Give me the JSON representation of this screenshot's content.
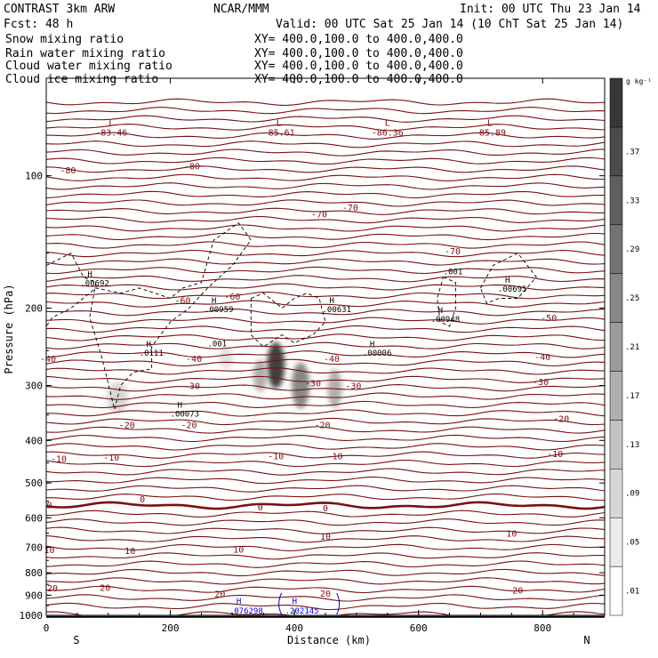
{
  "header": {
    "model": "CONTRAST  3km ARW",
    "center": "NCAR/MMM",
    "init": "Init: 00 UTC Thu 23 Jan 14",
    "fcst": "Fcst:   48 h",
    "valid": "Valid: 00 UTC Sat 25 Jan 14 (10 ChT Sat 25 Jan 14)"
  },
  "fields": [
    {
      "name": "Snow mixing ratio",
      "xy": "",
      "color": "#000000"
    },
    {
      "name": "Rain water mixing ratio",
      "xy": "XY= 400.0,100.0 to 400.0,400.0",
      "color": "#cc0000"
    },
    {
      "name": "Cloud water mixing ratio",
      "xy": "XY= 400.0,100.0 to 400.0,400.0",
      "color": "#0000cc"
    },
    {
      "name": "Cloud ice mixing ratio",
      "xy": "XY= 400.0,100.0 to 400.0,400.0",
      "color": "#000000"
    }
  ],
  "snow_xy": "XY= 400.0,100.0 to 400.0,400.0",
  "chart_data": {
    "type": "contour",
    "xlabel": "Distance (km)",
    "ylabel": "Pressure (hPa)",
    "xlim": [
      0,
      900
    ],
    "ylim": [
      1000,
      60
    ],
    "y_scale": "log",
    "x_ticks": [
      "0",
      "200",
      "400",
      "600",
      "800"
    ],
    "y_ticks": [
      "100",
      "200",
      "300",
      "400",
      "500",
      "600",
      "700",
      "800",
      "900",
      "1000"
    ],
    "x_ends": {
      "left": "S",
      "right": "N"
    },
    "colorbar": {
      "unit": "g kg⁻¹",
      "levels": [
        ".01",
        ".05",
        ".09",
        ".13",
        ".17",
        ".21",
        ".25",
        ".29",
        ".33",
        ".37"
      ]
    },
    "temperature_labels": [
      {
        "x": 35,
        "p": 97,
        "t": "-80"
      },
      {
        "x": 235,
        "p": 95,
        "t": "-80"
      },
      {
        "x": 440,
        "p": 122,
        "t": "-70"
      },
      {
        "x": 490,
        "p": 118,
        "t": "-70"
      },
      {
        "x": 655,
        "p": 148,
        "t": "-70"
      },
      {
        "x": 220,
        "p": 192,
        "t": "-60"
      },
      {
        "x": 300,
        "p": 188,
        "t": "-60"
      },
      {
        "x": 810,
        "p": 210,
        "t": "-50"
      },
      {
        "x": -10,
        "p": 260,
        "t": "-40"
      },
      {
        "x": 238,
        "p": 260,
        "t": "-40"
      },
      {
        "x": 460,
        "p": 260,
        "t": "-40"
      },
      {
        "x": 800,
        "p": 258,
        "t": "-40"
      },
      {
        "x": 235,
        "p": 300,
        "t": "-30"
      },
      {
        "x": 430,
        "p": 296,
        "t": "-30"
      },
      {
        "x": 495,
        "p": 300,
        "t": "-30"
      },
      {
        "x": 797,
        "p": 294,
        "t": "-30"
      },
      {
        "x": 130,
        "p": 368,
        "t": "-20"
      },
      {
        "x": 230,
        "p": 368,
        "t": "-20"
      },
      {
        "x": 445,
        "p": 368,
        "t": "-20"
      },
      {
        "x": 830,
        "p": 356,
        "t": "-20"
      },
      {
        "x": 20,
        "p": 439,
        "t": "-10"
      },
      {
        "x": 105,
        "p": 436,
        "t": "-10"
      },
      {
        "x": 370,
        "p": 433,
        "t": "-10"
      },
      {
        "x": 465,
        "p": 433,
        "t": "-10"
      },
      {
        "x": 820,
        "p": 428,
        "t": "-10"
      },
      {
        "x": 5,
        "p": 560,
        "t": "0"
      },
      {
        "x": 155,
        "p": 543,
        "t": "0"
      },
      {
        "x": 345,
        "p": 567,
        "t": "0"
      },
      {
        "x": 450,
        "p": 569,
        "t": "0"
      },
      {
        "x": 450,
        "p": 661,
        "t": "10"
      },
      {
        "x": 750,
        "p": 650,
        "t": "10"
      },
      {
        "x": 5,
        "p": 709,
        "t": "10"
      },
      {
        "x": 135,
        "p": 711,
        "t": "10"
      },
      {
        "x": 310,
        "p": 707,
        "t": "10"
      },
      {
        "x": 10,
        "p": 865,
        "t": "20"
      },
      {
        "x": 95,
        "p": 864,
        "t": "20"
      },
      {
        "x": 280,
        "p": 893,
        "t": "20"
      },
      {
        "x": 450,
        "p": 891,
        "t": "20"
      },
      {
        "x": 760,
        "p": 876,
        "t": "20"
      }
    ],
    "low_centers": [
      {
        "x": 105,
        "p": 77,
        "l": "L",
        "v": "-83.46"
      },
      {
        "x": 375,
        "p": 77,
        "l": "L",
        "v": "-85.61"
      },
      {
        "x": 550,
        "p": 77,
        "l": "L",
        "v": "-86.36"
      },
      {
        "x": 715,
        "p": 77,
        "l": "L",
        "v": "-85.89"
      }
    ],
    "ice_maxima": [
      {
        "x": 55,
        "p": 170,
        "l": "H",
        "v": ".00692"
      },
      {
        "x": 255,
        "p": 195,
        "l": "H",
        "v": ".00959"
      },
      {
        "x": 260,
        "p": 233,
        "l": "",
        "v": ".001"
      },
      {
        "x": 445,
        "p": 195,
        "l": "H",
        "v": ".00631"
      },
      {
        "x": 150,
        "p": 245,
        "l": "H",
        "v": ".0111"
      },
      {
        "x": 200,
        "p": 337,
        "l": "H",
        "v": ".00073"
      },
      {
        "x": 510,
        "p": 245,
        "l": "H",
        "v": ".00006"
      },
      {
        "x": 620,
        "p": 205,
        "l": "H",
        "v": ".00948"
      },
      {
        "x": 640,
        "p": 160,
        "l": "",
        "v": ".001"
      },
      {
        "x": 728,
        "p": 175,
        "l": "H",
        "v": ".00695"
      }
    ],
    "cloud_water_maxima": [
      {
        "x": 295,
        "p": 950,
        "l": "H",
        "v": ".076298"
      },
      {
        "x": 385,
        "p": 950,
        "l": "H",
        "v": ".202145"
      }
    ],
    "snow_cores": [
      {
        "x": 370,
        "p": 270,
        "w": 10,
        "h": 26,
        "amp": 0.38
      },
      {
        "x": 345,
        "p": 285,
        "w": 8,
        "h": 18,
        "amp": 0.16
      },
      {
        "x": 410,
        "p": 300,
        "w": 10,
        "h": 26,
        "amp": 0.24
      },
      {
        "x": 465,
        "p": 305,
        "w": 8,
        "h": 22,
        "amp": 0.16
      },
      {
        "x": 115,
        "p": 320,
        "w": 12,
        "h": 18,
        "amp": 0.08
      },
      {
        "x": 290,
        "p": 260,
        "w": 8,
        "h": 12,
        "amp": 0.06
      }
    ]
  }
}
